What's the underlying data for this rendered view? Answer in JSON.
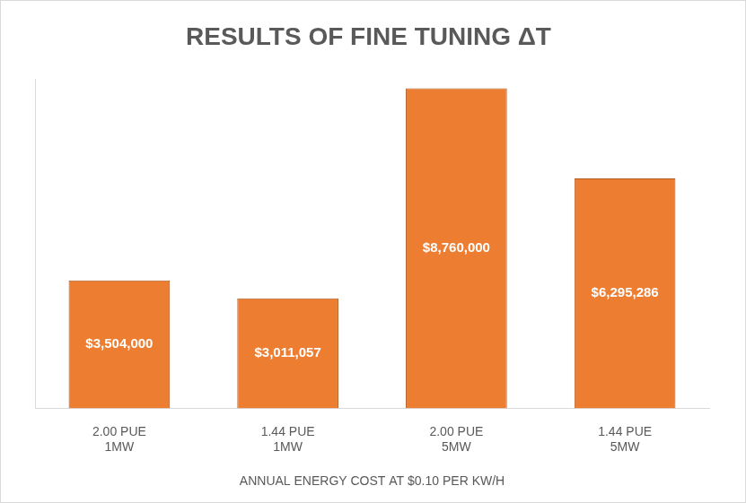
{
  "chart_data": {
    "type": "bar",
    "title": "RESULTS OF FINE TUNING ΔT",
    "categories": [
      [
        "2.00 PUE",
        "1MW"
      ],
      [
        "1.44 PUE",
        "1MW"
      ],
      [
        "2.00 PUE",
        "5MW"
      ],
      [
        "1.44 PUE",
        "5MW"
      ]
    ],
    "values": [
      3504000,
      3011057,
      8760000,
      6295286
    ],
    "value_labels": [
      "$3,504,000",
      "$3,011,057",
      "$8,760,000",
      "$6,295,286"
    ],
    "x_label": "ANNUAL ENERGY COST AT $0.10 PER KW/H",
    "color": "#ed7d31",
    "ylim": [
      0,
      9000000
    ],
    "grid": false,
    "data_labels": true,
    "tick_labels": "x"
  }
}
